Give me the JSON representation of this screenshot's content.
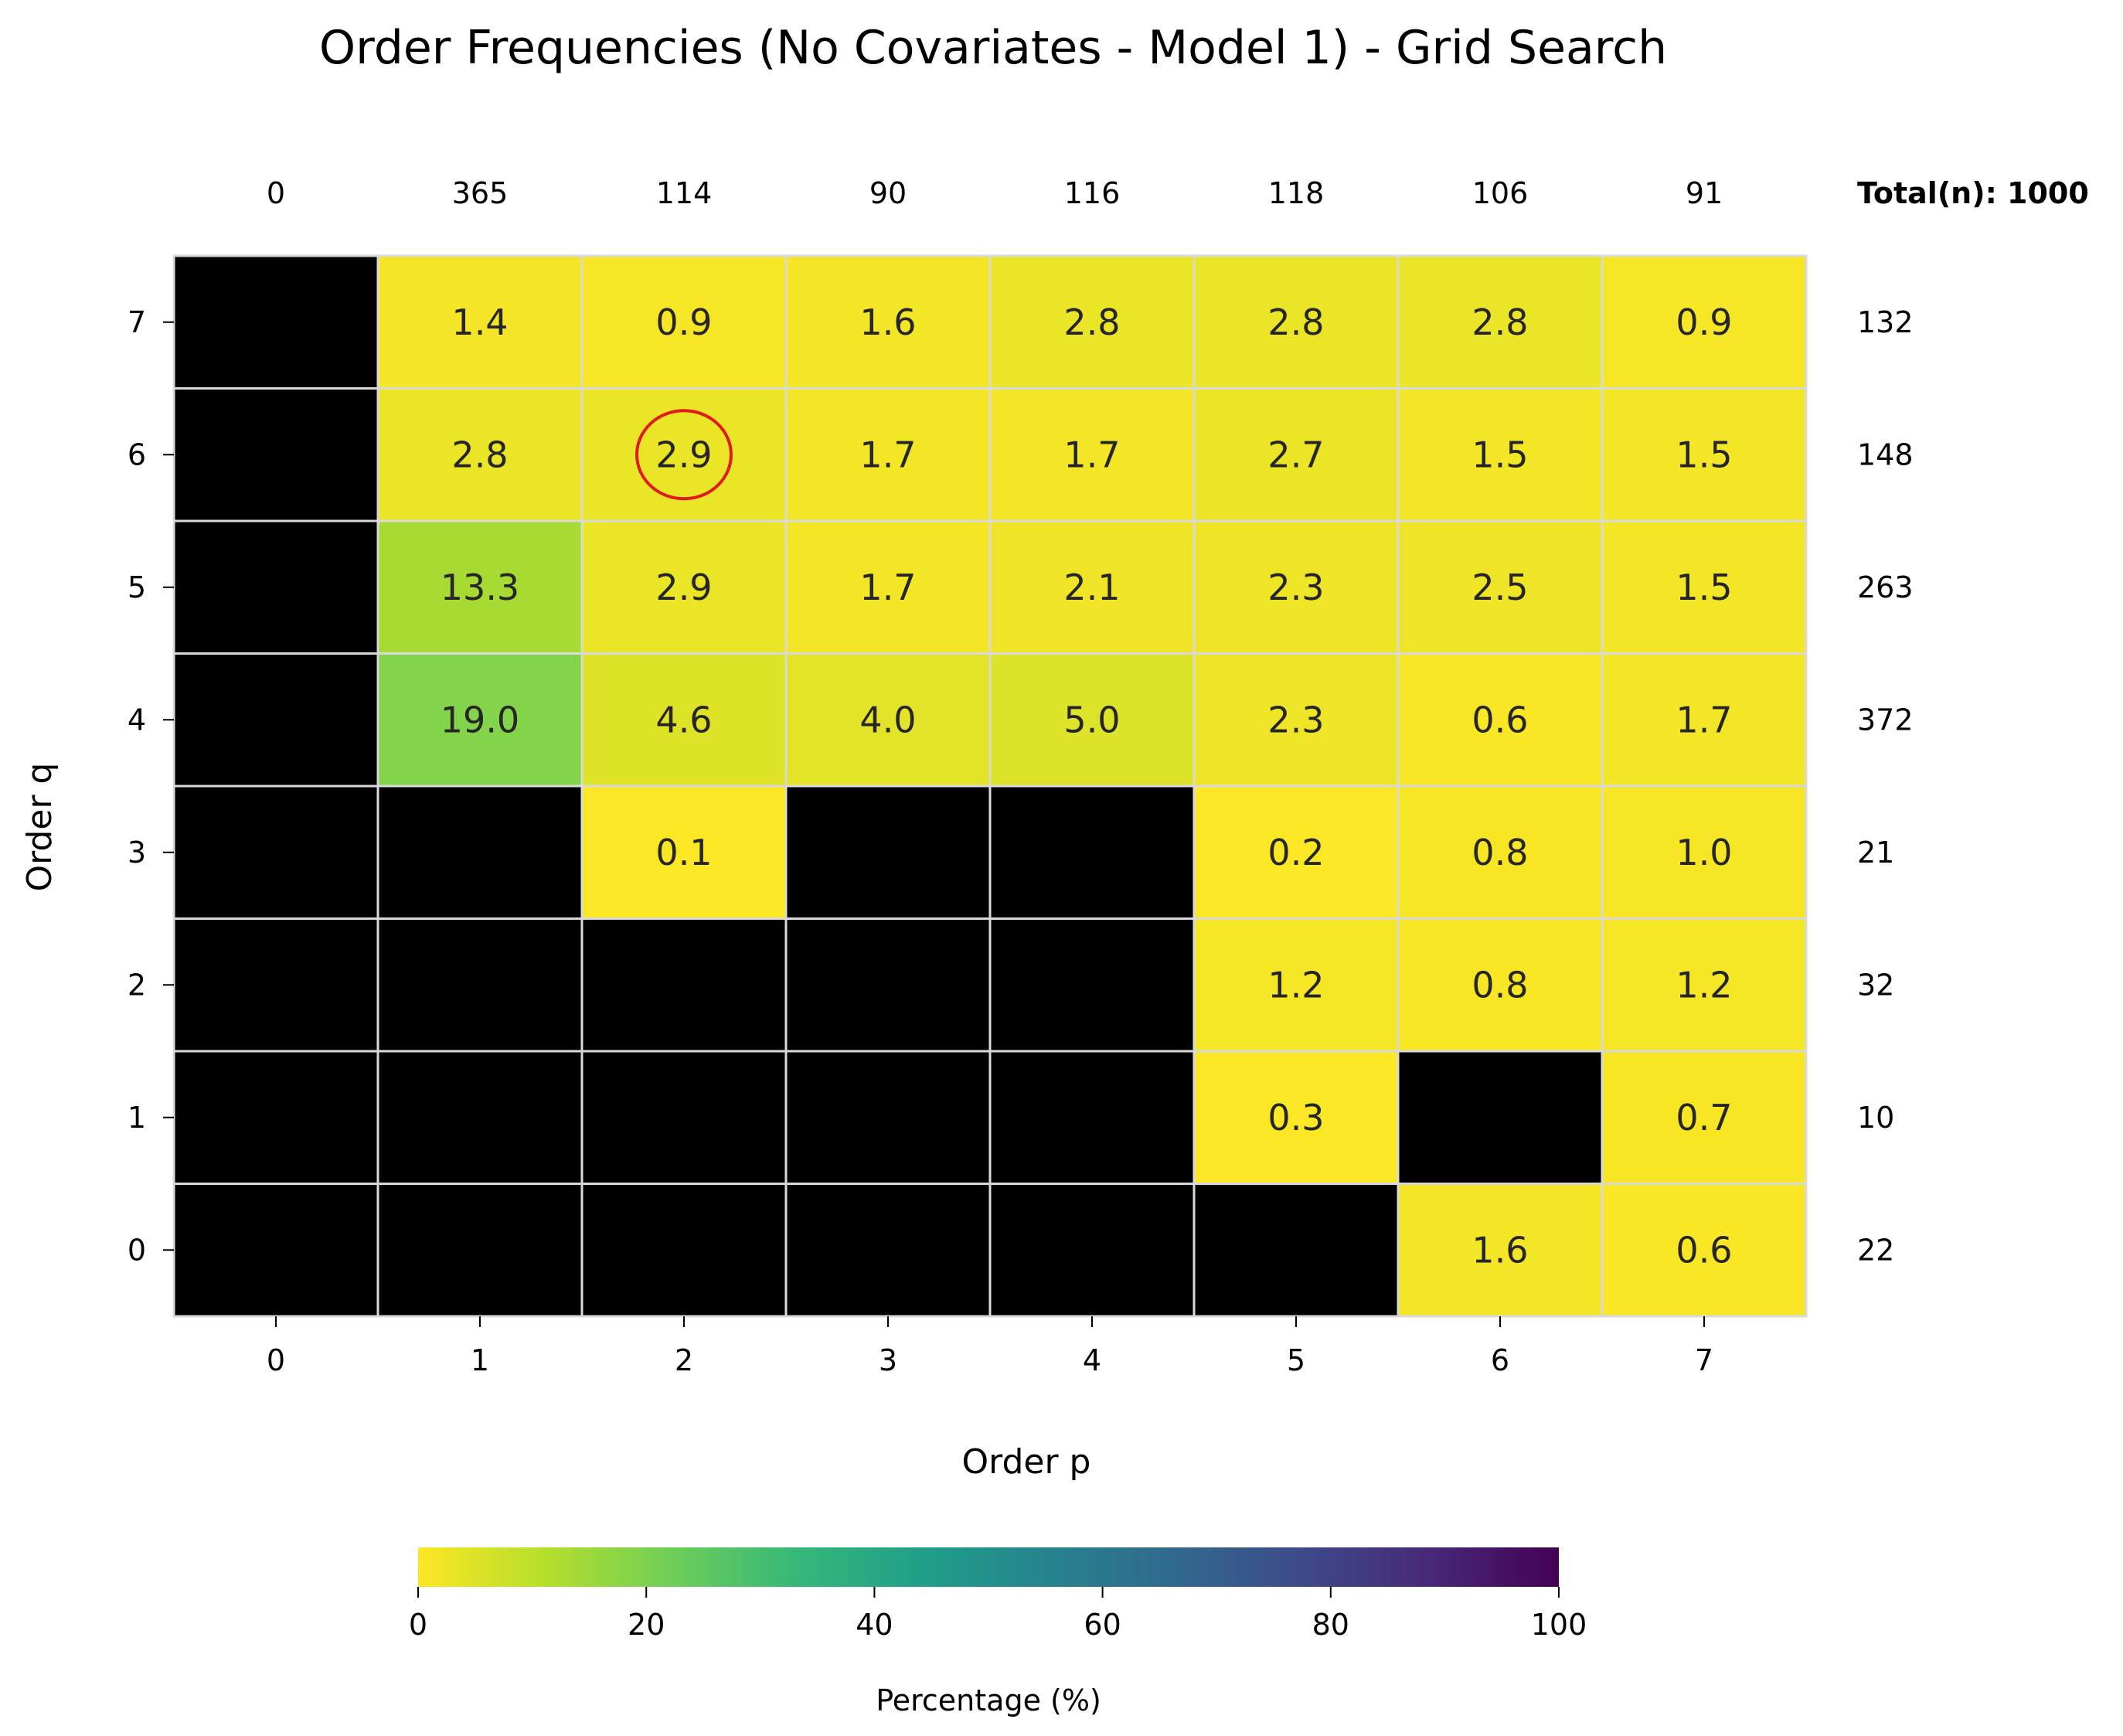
{
  "chart_data": {
    "type": "heatmap",
    "title": "Order Frequencies (No Covariates - Model 1) - Grid Search",
    "xlabel": "Order p",
    "ylabel": "Order q",
    "x_categories": [
      "0",
      "1",
      "2",
      "3",
      "4",
      "5",
      "6",
      "7"
    ],
    "y_categories": [
      "7",
      "6",
      "5",
      "4",
      "3",
      "2",
      "1",
      "0"
    ],
    "values": [
      [
        null,
        1.4,
        0.9,
        1.6,
        2.8,
        2.8,
        2.8,
        0.9
      ],
      [
        null,
        2.8,
        2.9,
        1.7,
        1.7,
        2.7,
        1.5,
        1.5
      ],
      [
        null,
        13.3,
        2.9,
        1.7,
        2.1,
        2.3,
        2.5,
        1.5
      ],
      [
        null,
        19.0,
        4.6,
        4.0,
        5.0,
        2.3,
        0.6,
        1.7
      ],
      [
        null,
        null,
        0.1,
        null,
        null,
        0.2,
        0.8,
        1.0
      ],
      [
        null,
        null,
        null,
        null,
        null,
        1.2,
        0.8,
        1.2
      ],
      [
        null,
        null,
        null,
        null,
        null,
        0.3,
        null,
        0.7
      ],
      [
        null,
        null,
        null,
        null,
        null,
        null,
        1.6,
        0.6
      ]
    ],
    "missing_color": "#000000",
    "column_totals": [
      "0",
      "365",
      "114",
      "90",
      "116",
      "118",
      "106",
      "91"
    ],
    "row_totals": [
      "132",
      "148",
      "263",
      "372",
      "21",
      "32",
      "10",
      "22"
    ],
    "total_label": "Total(n): 1000",
    "highlight": {
      "row": "6",
      "col": "2",
      "color": "#e31a1c"
    },
    "colorbar": {
      "label": "Percentage (%)",
      "range": [
        0,
        100
      ],
      "ticks": [
        "0",
        "20",
        "40",
        "60",
        "80",
        "100"
      ],
      "colormap": "viridis_r",
      "stops": [
        "#fde725",
        "#b5de2b",
        "#6ece58",
        "#35b779",
        "#1f9e89",
        "#26828e",
        "#31688e",
        "#3e4989",
        "#482878",
        "#440154"
      ]
    },
    "grid_color": "#d9d9d9"
  }
}
